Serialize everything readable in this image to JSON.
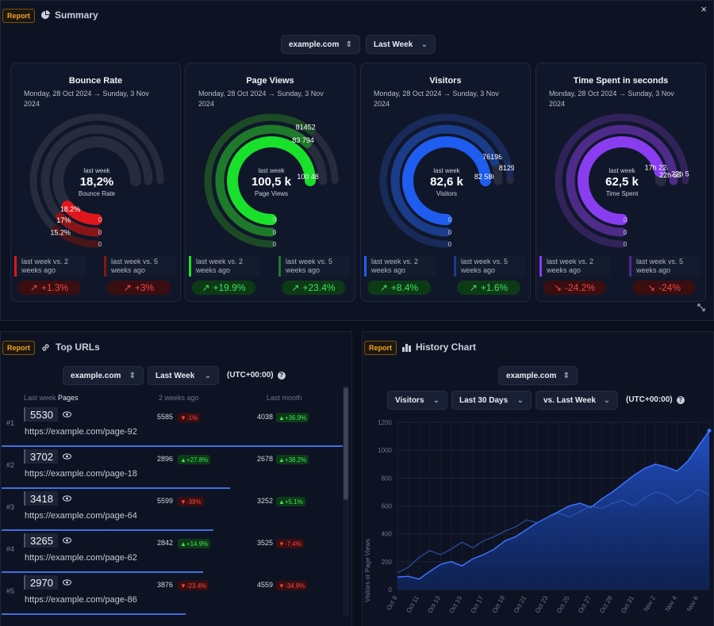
{
  "close_label": "×",
  "summary": {
    "badge": "Report",
    "title": "Summary",
    "site_select": "example.com",
    "period_select": "Last Week",
    "cards": [
      {
        "title": "Bounce Rate",
        "date_line1": "Monday, 28 Oct 2024 → Sunday, 3 Nov",
        "date_line2": "2024",
        "center_small": "last week",
        "center_big": "18,2%",
        "center_sub": "Bounce Rate",
        "rings": [
          {
            "label": "18.2%",
            "fraction": 0.182
          },
          {
            "label": "17%",
            "fraction": 0.17
          },
          {
            "label": "15.2%",
            "fraction": 0.152
          }
        ],
        "zero_labels": [
          "0",
          "0",
          "0"
        ],
        "cmp1": "last week vs. 2 weeks ago",
        "cmp2": "last week vs. 5 weeks ago",
        "chip1": "+1.3%",
        "chip2": "+3%",
        "chip1_dir": "up",
        "chip2_dir": "up",
        "chip_tone": "neg",
        "color": "#e0161c",
        "color_mid": "#8a1518",
        "color_dim": "#4a1418"
      },
      {
        "title": "Page Views",
        "date_line1": "Monday, 28 Oct 2024 → Sunday, 3 Nov",
        "date_line2": "2024",
        "center_small": "last week",
        "center_big": "100,5 k",
        "center_sub": "Page Views",
        "rings": [
          {
            "label": "100 484",
            "fraction": 1.0
          },
          {
            "label": "83 794",
            "fraction": 0.83
          },
          {
            "label": "81452",
            "fraction": 0.81
          }
        ],
        "zero_labels": [
          "0",
          "0",
          "0"
        ],
        "cmp1": "last week vs. 2 weeks ago",
        "cmp2": "last week vs. 5 weeks ago",
        "chip1": "+19.9%",
        "chip2": "+23.4%",
        "chip1_dir": "up",
        "chip2_dir": "up",
        "chip_tone": "pos",
        "color": "#19e02a",
        "color_mid": "#1e7a2a",
        "color_dim": "#1c4a24"
      },
      {
        "title": "Visitors",
        "date_line1": "Monday, 28 Oct 2024 → Sunday, 3 Nov",
        "date_line2": "2024",
        "center_small": "last week",
        "center_big": "82,6 k",
        "center_sub": "Visitors",
        "rings": [
          {
            "label": "82 586",
            "fraction": 1.0
          },
          {
            "label": "76198",
            "fraction": 0.92
          },
          {
            "label": "81290",
            "fraction": 0.98
          }
        ],
        "zero_labels": [
          "0",
          "0",
          "0"
        ],
        "cmp1": "last week vs. 2 weeks ago",
        "cmp2": "last week vs. 5 weeks ago",
        "chip1": "+8.4%",
        "chip2": "+1.6%",
        "chip1_dir": "up",
        "chip2_dir": "up",
        "chip_tone": "pos",
        "color": "#1f5cf0",
        "color_mid": "#1a3c8a",
        "color_dim": "#172a5a"
      },
      {
        "title": "Time Spent in seconds",
        "date_line1": "Monday, 28 Oct 2024 → Sunday, 3 Nov",
        "date_line2": "2024",
        "center_small": "last week",
        "center_big": "62,5 k",
        "center_sub": "Time Spent",
        "rings": [
          {
            "label": "17h 22m",
            "fraction": 0.95
          },
          {
            "label": "22h 55m",
            "fraction": 1.0
          },
          {
            "label": "22h 51m",
            "fraction": 1.0
          }
        ],
        "zero_labels": [
          "0",
          "0",
          "0"
        ],
        "cmp1": "last week vs. 2 weeks ago",
        "cmp2": "last week vs. 5 weeks ago",
        "chip1": "-24.2%",
        "chip2": "-24%",
        "chip1_dir": "down",
        "chip2_dir": "down",
        "chip_tone": "neg",
        "color": "#8a3cf0",
        "color_mid": "#4e2a8a",
        "color_dim": "#32225a"
      }
    ]
  },
  "top_urls": {
    "badge": "Report",
    "title": "Top URLs",
    "site_select": "example.com",
    "period_select": "Last Week",
    "timezone": "(UTC+00:00)",
    "col_last_week": "Last week",
    "col_pages": "Pages",
    "col_two_weeks": "2 weeks ago",
    "col_last_month": "Last month",
    "rows": [
      {
        "rank": "#1",
        "value": "5530",
        "url": "https://example.com/page-92",
        "two_weeks": "5585",
        "two_weeks_delta": "▼-1%",
        "two_weeks_tone": "neg",
        "last_month": "4038",
        "last_month_delta": "▲+36.9%",
        "last_month_tone": "pos",
        "fraction": 1.0
      },
      {
        "rank": "#2",
        "value": "3702",
        "url": "https://example.com/page-18",
        "two_weeks": "2896",
        "two_weeks_delta": "▲+27.8%",
        "two_weeks_tone": "pos",
        "last_month": "2678",
        "last_month_delta": "▲+38.2%",
        "last_month_tone": "pos",
        "fraction": 0.67
      },
      {
        "rank": "#3",
        "value": "3418",
        "url": "https://example.com/page-64",
        "two_weeks": "5599",
        "two_weeks_delta": "▼-39%",
        "two_weeks_tone": "neg",
        "last_month": "3252",
        "last_month_delta": "▲+5.1%",
        "last_month_tone": "pos",
        "fraction": 0.62
      },
      {
        "rank": "#4",
        "value": "3265",
        "url": "https://example.com/page-62",
        "two_weeks": "2842",
        "two_weeks_delta": "▲+14.9%",
        "two_weeks_tone": "pos",
        "last_month": "3525",
        "last_month_delta": "▼-7.4%",
        "last_month_tone": "neg",
        "fraction": 0.59
      },
      {
        "rank": "#5",
        "value": "2970",
        "url": "https://example.com/page-86",
        "two_weeks": "3876",
        "two_weeks_delta": "▼-23.4%",
        "two_weeks_tone": "neg",
        "last_month": "4559",
        "last_month_delta": "▼-34.9%",
        "last_month_tone": "neg",
        "fraction": 0.54
      }
    ]
  },
  "history": {
    "badge": "Report",
    "title": "History Chart",
    "site_select": "example.com",
    "metric_select": "Visitors",
    "range_select": "Last 30 Days",
    "compare_select": "vs. Last Week",
    "timezone": "(UTC+00:00)"
  },
  "chart_data": {
    "type": "area",
    "title": "",
    "xlabel": "",
    "ylabel": "Visitors or Page Views",
    "ylim": [
      0,
      1200
    ],
    "yticks": [
      0,
      200,
      400,
      600,
      800,
      1000,
      1200
    ],
    "x": [
      "Oct 9",
      "Oct 10",
      "Oct 11",
      "Oct 12",
      "Oct 13",
      "Oct 14",
      "Oct 15",
      "Oct 16",
      "Oct 17",
      "Oct 18",
      "Oct 19",
      "Oct 20",
      "Oct 21",
      "Oct 22",
      "Oct 23",
      "Oct 24",
      "Oct 25",
      "Oct 26",
      "Oct 27",
      "Oct 28",
      "Oct 29",
      "Oct 30",
      "Oct 31",
      "Nov 1",
      "Nov 2",
      "Nov 3",
      "Nov 4",
      "Nov 5",
      "Nov 6",
      "Nov 7"
    ],
    "x_tick_labels": [
      "Oct 9",
      "Oct 11",
      "Oct 13",
      "Oct 15",
      "Oct 17",
      "Oct 19",
      "Oct 21",
      "Oct 23",
      "Oct 25",
      "Oct 27",
      "Oct 29",
      "Oct 31",
      "Nov 2",
      "Nov 4",
      "Nov 6"
    ],
    "grid": true,
    "series": [
      {
        "values": [
          90,
          95,
          75,
          130,
          180,
          200,
          170,
          220,
          250,
          290,
          350,
          380,
          430,
          480,
          520,
          560,
          600,
          620,
          590,
          650,
          700,
          760,
          820,
          870,
          900,
          880,
          850,
          920,
          1030,
          1140
        ]
      },
      {
        "values": [
          120,
          160,
          230,
          280,
          250,
          290,
          340,
          300,
          350,
          380,
          420,
          450,
          500,
          480,
          520,
          550,
          520,
          560,
          600,
          580,
          620,
          640,
          600,
          660,
          700,
          680,
          620,
          660,
          720,
          680
        ]
      }
    ]
  }
}
